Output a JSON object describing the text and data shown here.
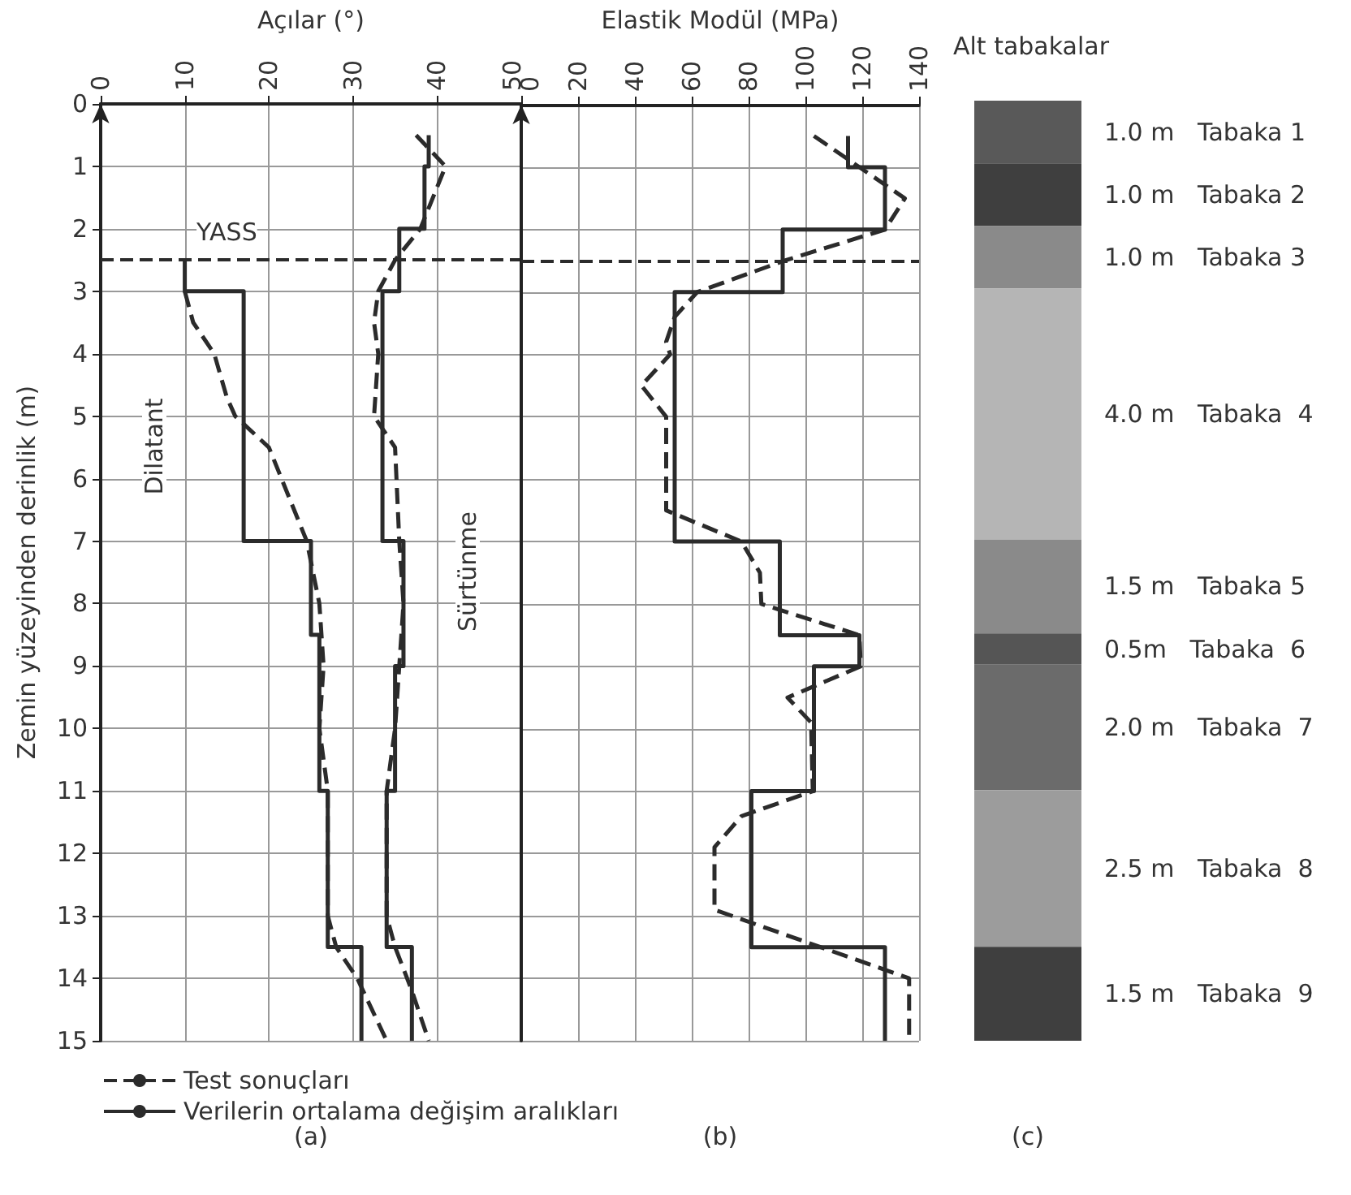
{
  "chart_data": [
    {
      "type": "line",
      "xlabel": "Açılar (°)",
      "ylabel": "Zemin yüzeyinden derinlik (m)",
      "xlim": [
        0,
        50
      ],
      "xticks": [
        0,
        10,
        20,
        30,
        40,
        50
      ],
      "ylim": [
        15,
        0
      ],
      "yticks": [
        0,
        1,
        2,
        3,
        4,
        5,
        6,
        7,
        8,
        9,
        10,
        11,
        12,
        13,
        14,
        15
      ],
      "grid": true,
      "legend": "bottom",
      "marker": "none",
      "series": [
        {
          "name": "Test sonuçları",
          "color": "#2b2b2b",
          "line_style": "dashed",
          "x": [
            10,
            11,
            13.5,
            15,
            16,
            20,
            24.5,
            26,
            26.5,
            26,
            27,
            27,
            28,
            30.5,
            34
          ],
          "values": [
            3,
            3.5,
            4,
            4.7,
            5,
            5.5,
            7,
            8,
            9,
            10,
            11,
            13,
            13.5,
            14,
            15
          ]
        },
        {
          "name": "Verilerin ortalama değişim aralıkları",
          "color": "#2b2b2b",
          "line_style": "solid",
          "x": [
            10,
            10,
            17,
            17,
            25,
            25,
            26,
            26,
            27,
            27,
            31,
            31
          ],
          "values": [
            2.5,
            3,
            3,
            7,
            7,
            8.5,
            8.5,
            11,
            11,
            13.5,
            13.5,
            15
          ]
        },
        {
          "color": "#2b2b2b",
          "line_style": "dashed",
          "x": [
            37.5,
            41,
            38,
            35,
            33,
            32.5,
            33,
            32.5,
            33.5,
            35,
            35.5,
            36,
            35.5,
            35,
            34,
            34,
            35,
            37,
            39
          ],
          "values": [
            0.5,
            1,
            2,
            2.5,
            3,
            3.5,
            4,
            5,
            5.2,
            5.5,
            7,
            8,
            9,
            10,
            11,
            13,
            13.5,
            14.2,
            15
          ]
        },
        {
          "color": "#2b2b2b",
          "line_style": "solid",
          "x": [
            39,
            39,
            38.5,
            38.5,
            35.5,
            35.5,
            33.5,
            33.5,
            36,
            36,
            35,
            35,
            34,
            34,
            37,
            37
          ],
          "values": [
            0.5,
            1,
            1,
            2,
            2,
            3,
            3,
            7,
            7,
            9,
            9,
            11,
            11,
            13.5,
            13.5,
            15
          ]
        }
      ],
      "ref_lines": [
        {
          "axis": "y",
          "value": 2.5,
          "color": "#2b2b2b",
          "line_style": "dashed"
        }
      ],
      "annotations": [
        {
          "text": "YASS",
          "x": 15,
          "y": 2.05
        },
        "Dilatant",
        "Sürtünme",
        "(a)"
      ]
    },
    {
      "type": "line",
      "xlabel": "Elastik Modül (MPa)",
      "xlim": [
        0,
        140
      ],
      "xticks": [
        0,
        20,
        40,
        60,
        80,
        100,
        120,
        140
      ],
      "ylim": [
        15,
        0
      ],
      "yticks": [
        0,
        1,
        2,
        3,
        4,
        5,
        6,
        7,
        8,
        9,
        10,
        11,
        12,
        13,
        14,
        15
      ],
      "grid": true,
      "tick_labels": "x",
      "marker": "none",
      "series": [
        {
          "color": "#2b2b2b",
          "line_style": "dashed",
          "x": [
            103,
            135,
            128,
            92.5,
            62,
            54,
            51,
            52.4,
            42.3,
            51,
            51,
            77.5,
            84,
            84.5,
            119,
            119.5,
            93.7,
            102,
            102.6,
            77.5,
            68,
            68,
            136.5,
            136.5
          ],
          "values": [
            0.5,
            1.5,
            2,
            2.5,
            3,
            3.4,
            3.8,
            4,
            4.5,
            5,
            6.5,
            7,
            7.5,
            8,
            8.5,
            9,
            9.5,
            9.9,
            11,
            11.4,
            11.9,
            12.9,
            14,
            15
          ]
        },
        {
          "color": "#2b2b2b",
          "line_style": "solid",
          "x": [
            115,
            115,
            128,
            128,
            92,
            92,
            54,
            54,
            91,
            91,
            119,
            119,
            103,
            103,
            81,
            81,
            128,
            128
          ],
          "values": [
            0.5,
            1,
            1,
            2,
            2,
            3,
            3,
            7,
            7,
            8.5,
            8.5,
            9,
            9,
            11,
            11,
            13.5,
            13.5,
            15
          ]
        }
      ],
      "ref_lines": [
        {
          "axis": "y",
          "value": 2.5,
          "color": "#2b2b2b",
          "line_style": "dashed"
        }
      ],
      "annotations": [
        "(b)"
      ]
    },
    {
      "type": "bar",
      "title": "Alt tabakalar",
      "stacked": true,
      "categories": [
        null
      ],
      "ylim": [
        15,
        0
      ],
      "tick_labels": false,
      "series": [
        {
          "name": "Tabaka 1",
          "color": "#595959",
          "values": [
            1.0
          ],
          "value_labels": [
            "1.0 m"
          ]
        },
        {
          "name": "Tabaka 2",
          "color": "#3f3f3f",
          "values": [
            1.0
          ],
          "value_labels": [
            "1.0 m"
          ]
        },
        {
          "name": "Tabaka 3",
          "color": "#8a8a8a",
          "values": [
            1.0
          ],
          "value_labels": [
            "1.0 m"
          ]
        },
        {
          "name": "Tabaka  4",
          "color": "#b5b5b5",
          "values": [
            4.0
          ],
          "value_labels": [
            "4.0 m"
          ]
        },
        {
          "name": "Tabaka 5",
          "color": "#8a8a8a",
          "values": [
            1.5
          ],
          "value_labels": [
            "1.5 m"
          ]
        },
        {
          "name": "Tabaka  6",
          "color": "#555555",
          "values": [
            0.5
          ],
          "value_labels": [
            "0.5m"
          ]
        },
        {
          "name": "Tabaka  7",
          "color": "#6b6b6b",
          "values": [
            2.0
          ],
          "value_labels": [
            "2.0 m"
          ]
        },
        {
          "name": "Tabaka  8",
          "color": "#9c9c9c",
          "values": [
            2.5
          ],
          "value_labels": [
            "2.5 m"
          ]
        },
        {
          "name": "Tabaka  9",
          "color": "#3f3f3f",
          "values": [
            1.5
          ],
          "value_labels": [
            "1.5 m"
          ]
        }
      ],
      "annotations": [
        "(c)"
      ]
    }
  ]
}
